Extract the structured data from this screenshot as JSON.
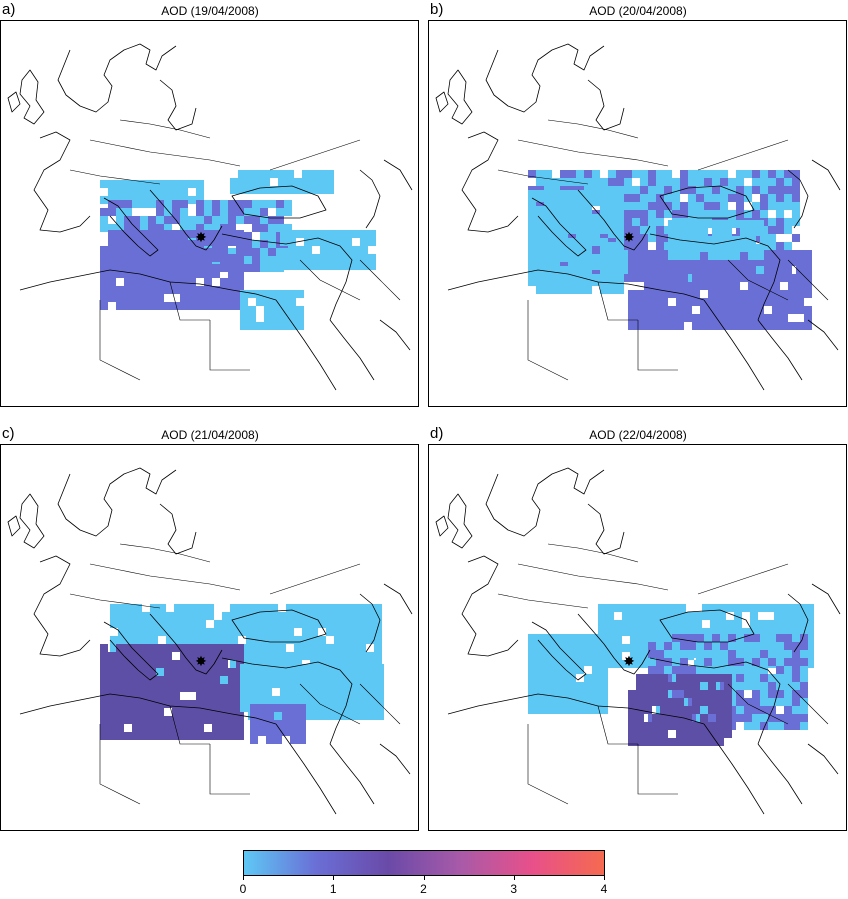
{
  "panels": [
    {
      "id": "a",
      "letter": "a)",
      "title": "AOD (19/04/2008)"
    },
    {
      "id": "b",
      "letter": "b)",
      "title": "AOD (20/04/2008)"
    },
    {
      "id": "c",
      "letter": "c)",
      "title": "AOD (21/04/2008)"
    },
    {
      "id": "d",
      "letter": "d)",
      "title": "AOD (22/04/2008)"
    }
  ],
  "colorbar": {
    "ticks": [
      "0",
      "1",
      "2",
      "3",
      "4"
    ],
    "range": [
      0,
      4
    ],
    "colors": [
      "#5ec8f5",
      "#6a6fd6",
      "#6a4aa8",
      "#a85aa8",
      "#e8508a",
      "#f56a50"
    ]
  },
  "colors": {
    "low": "#5ec8f5",
    "mid": "#6a6fd6",
    "high": "#5e4fa6"
  }
}
